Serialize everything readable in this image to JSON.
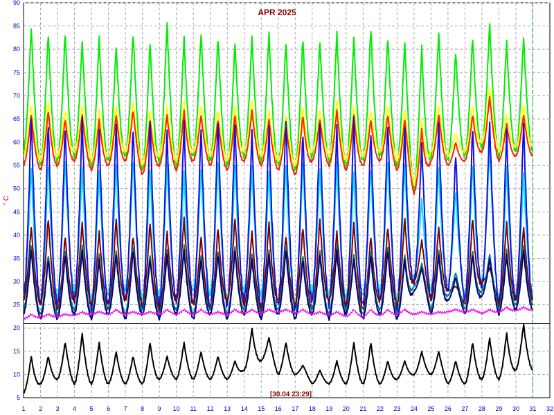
{
  "chart_data": {
    "type": "line",
    "title": "APR 2025",
    "ylabel": "° C",
    "xlabel": "",
    "timestamp_label": "[30.04 23:29]",
    "x_ticks": [
      1,
      2,
      3,
      4,
      5,
      6,
      7,
      8,
      9,
      10,
      11,
      12,
      13,
      14,
      15,
      16,
      17,
      18,
      19,
      20,
      21,
      22,
      23,
      24,
      25,
      26,
      27,
      28,
      29,
      30,
      31,
      32
    ],
    "y_ticks": [
      5,
      10,
      15,
      20,
      25,
      30,
      35,
      40,
      45,
      50,
      55,
      60,
      65,
      70,
      75,
      80,
      85,
      90
    ],
    "xlim": [
      1,
      32
    ],
    "ylim": [
      5,
      90
    ],
    "grid": true,
    "legend": "none",
    "cursor_day": 31,
    "colors": {
      "title": "#8b0000",
      "ticks": "#0000cc",
      "ylabel": "#cc0000",
      "timestamp": "#8b0000",
      "grid": "#a8a8a8",
      "cursor": "#009900"
    },
    "series": [
      {
        "color": "#00ee00",
        "daily_peak": [
          85,
          84,
          84,
          82,
          83,
          81,
          84,
          82,
          86,
          83,
          84,
          83,
          82,
          83,
          84,
          82,
          83,
          82,
          84,
          83,
          85,
          83,
          82,
          81,
          84,
          80,
          83,
          86,
          82,
          83
        ],
        "night_base": [
          58,
          55,
          56,
          57,
          55,
          56,
          57,
          54,
          56,
          55,
          57,
          56,
          55,
          57,
          56,
          55,
          54,
          57,
          56,
          55,
          56,
          57,
          55,
          50,
          57,
          56,
          57,
          59,
          57,
          58
        ]
      },
      {
        "color": "#ff2000",
        "daily_peak": [
          66,
          67,
          65,
          66,
          65,
          66,
          67,
          65,
          66,
          67,
          66,
          65,
          66,
          67,
          65,
          64,
          66,
          65,
          67,
          66,
          65,
          66,
          65,
          63,
          66,
          60,
          66,
          70,
          64,
          66
        ],
        "night_base": [
          55,
          54,
          55,
          56,
          54,
          55,
          56,
          53,
          55,
          54,
          56,
          55,
          54,
          56,
          55,
          54,
          53,
          56,
          55,
          54,
          55,
          56,
          54,
          49,
          56,
          55,
          56,
          58,
          56,
          57
        ]
      },
      {
        "color": "#ffff00",
        "daily_peak": [
          68,
          69,
          67,
          68,
          67,
          68,
          69,
          67,
          68,
          69,
          68,
          67,
          68,
          69,
          67,
          66,
          68,
          67,
          69,
          68,
          67,
          68,
          67,
          65,
          68,
          62,
          68,
          72,
          66,
          68
        ],
        "night_base": [
          57,
          56,
          57,
          58,
          56,
          57,
          58,
          55,
          57,
          56,
          58,
          57,
          56,
          58,
          57,
          56,
          55,
          58,
          57,
          56,
          57,
          58,
          56,
          51,
          58,
          57,
          58,
          60,
          58,
          59
        ]
      },
      {
        "color": "#1010e0",
        "daily_peak": [
          66,
          65,
          64,
          66,
          63,
          65,
          64,
          66,
          63,
          65,
          64,
          66,
          65,
          63,
          64,
          66,
          63,
          65,
          64,
          66,
          63,
          65,
          64,
          60,
          65,
          58,
          64,
          65,
          63,
          65
        ],
        "night_base": [
          26,
          25,
          25,
          26,
          24,
          25,
          26,
          24,
          25,
          26,
          25,
          24,
          25,
          26,
          24,
          25,
          24,
          26,
          25,
          24,
          25,
          26,
          24,
          30,
          26,
          28,
          26,
          29,
          25,
          26
        ]
      },
      {
        "color": "#00e0ff",
        "daily_peak": [
          55,
          56,
          57,
          55,
          54,
          56,
          57,
          55,
          56,
          54,
          55,
          57,
          56,
          55,
          54,
          56,
          57,
          55,
          56,
          54,
          55,
          57,
          56,
          48,
          55,
          50,
          56,
          60,
          55,
          54
        ],
        "night_base": [
          27,
          26,
          27,
          28,
          26,
          27,
          28,
          26,
          27,
          26,
          28,
          27,
          26,
          28,
          27,
          26,
          25,
          28,
          27,
          26,
          27,
          28,
          26,
          31,
          28,
          29,
          27,
          30,
          26,
          27
        ]
      },
      {
        "color": "#800000",
        "daily_peak": [
          42,
          44,
          40,
          43,
          41,
          44,
          40,
          43,
          41,
          44,
          40,
          42,
          44,
          41,
          43,
          40,
          42,
          44,
          41,
          43,
          40,
          42,
          44,
          39,
          42,
          29,
          44,
          33,
          43,
          42
        ],
        "night_base": [
          26,
          25,
          24,
          26,
          25,
          24,
          26,
          25,
          24,
          26,
          25,
          24,
          26,
          25,
          24,
          26,
          25,
          24,
          26,
          25,
          24,
          26,
          25,
          30,
          26,
          28,
          25,
          30,
          25,
          26
        ]
      },
      {
        "color": "#008080",
        "daily_peak": [
          38,
          36,
          37,
          38,
          36,
          37,
          38,
          36,
          37,
          38,
          36,
          37,
          38,
          36,
          37,
          38,
          36,
          37,
          38,
          36,
          37,
          38,
          36,
          34,
          37,
          32,
          37,
          36,
          37,
          38
        ],
        "night_base": [
          24,
          23,
          23,
          24,
          23,
          24,
          23,
          24,
          23,
          24,
          23,
          24,
          23,
          24,
          23,
          24,
          23,
          24,
          23,
          24,
          23,
          24,
          23,
          29,
          24,
          27,
          24,
          28,
          24,
          25
        ]
      },
      {
        "color": "#000080",
        "daily_peak": [
          37,
          35,
          36,
          37,
          35,
          36,
          37,
          35,
          36,
          37,
          35,
          36,
          37,
          35,
          36,
          37,
          35,
          36,
          37,
          35,
          36,
          37,
          35,
          33,
          36,
          31,
          36,
          35,
          36,
          37
        ],
        "night_base": [
          23,
          22,
          22,
          23,
          22,
          23,
          22,
          23,
          22,
          23,
          22,
          23,
          22,
          23,
          22,
          23,
          22,
          23,
          22,
          23,
          22,
          23,
          22,
          28,
          23,
          26,
          23,
          27,
          23,
          24
        ]
      },
      {
        "color": "#ee00ee",
        "daily_peak": [
          23,
          23,
          23,
          23.5,
          23.5,
          24,
          23.5,
          23.5,
          24,
          24,
          24,
          23.5,
          24,
          24,
          24,
          24,
          24,
          23.5,
          23.5,
          24,
          24,
          24,
          24,
          23.5,
          23.5,
          24,
          24,
          24,
          24.5,
          24.5
        ],
        "night_base": [
          22,
          22.3,
          22.5,
          22.8,
          23,
          23,
          23,
          23,
          23,
          23,
          23,
          23,
          23,
          23.2,
          23.2,
          23.5,
          23.2,
          23,
          22.8,
          22.5,
          22.5,
          22.8,
          23,
          23,
          23,
          23.5,
          23.5,
          23.2,
          23.5,
          23.8
        ]
      },
      {
        "color": "#000000",
        "daily_peak": [
          14,
          14,
          17,
          19,
          17,
          15,
          14,
          17,
          14,
          17,
          15,
          14,
          13,
          20,
          18,
          17,
          12,
          11,
          13,
          17,
          17,
          13,
          13,
          15,
          15,
          13,
          17,
          18,
          19,
          21
        ],
        "night_base": [
          6,
          8,
          9,
          8,
          8,
          8,
          8,
          8,
          9,
          9,
          9,
          9,
          9,
          11,
          13,
          10,
          10,
          8,
          8,
          8,
          8,
          8,
          9,
          10,
          10,
          8,
          8,
          9,
          9,
          11
        ]
      }
    ]
  }
}
